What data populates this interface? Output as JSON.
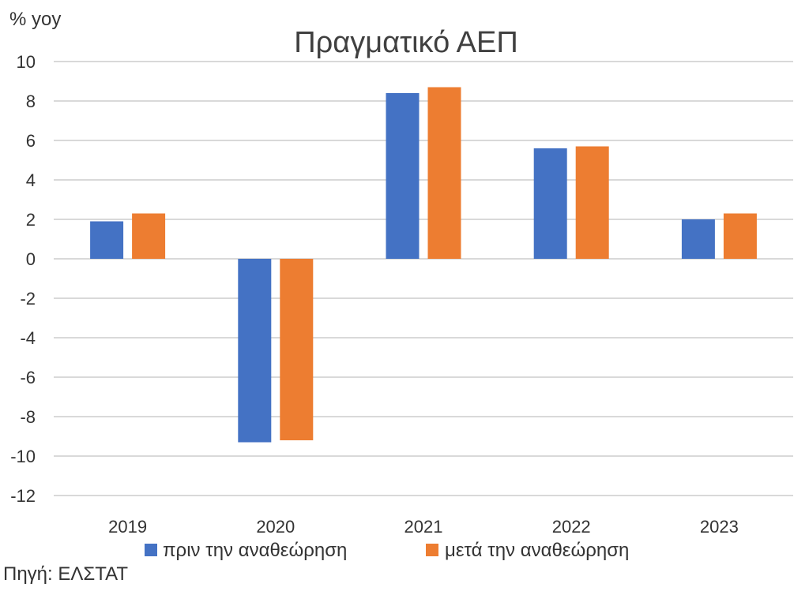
{
  "chart_data": {
    "type": "bar",
    "title": "Πραγματικό ΑΕΠ",
    "ylabel": "% yoy",
    "xlabel": "",
    "categories": [
      "2019",
      "2020",
      "2021",
      "2022",
      "2023"
    ],
    "ylim": [
      -12,
      10
    ],
    "yticks": [
      10,
      8,
      6,
      4,
      2,
      0,
      -2,
      -4,
      -6,
      -8,
      -10,
      -12
    ],
    "grid": true,
    "legend_position": "bottom",
    "series": [
      {
        "name": "πριν την αναθεώρηση",
        "color": "#4472c4",
        "values": [
          1.9,
          -9.3,
          8.4,
          5.6,
          2.0
        ]
      },
      {
        "name": "μετά την αναθεώρηση",
        "color": "#ed7d31",
        "values": [
          2.3,
          -9.2,
          8.7,
          5.7,
          2.3
        ]
      }
    ],
    "source": "Πηγή: ΕΛΣΤΑΤ"
  }
}
